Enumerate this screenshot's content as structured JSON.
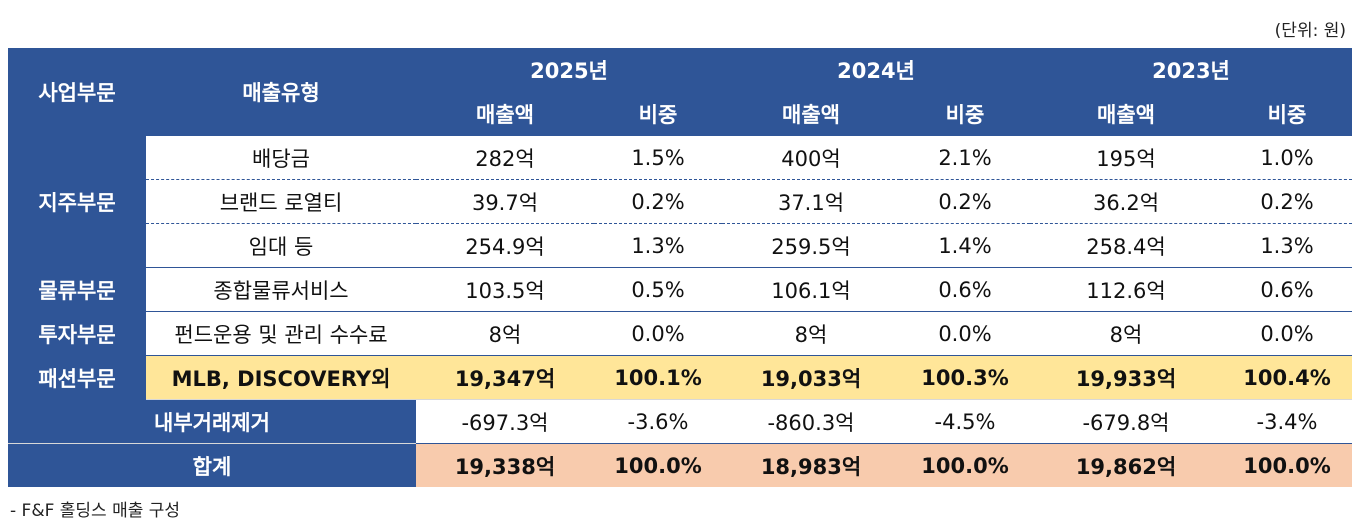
{
  "unit_note": "(단위: 원)",
  "caption": "- F&F 홀딩스 매출 구성",
  "header": {
    "segment": "사업부문",
    "type": "매출유형",
    "years": [
      "2025년",
      "2024년",
      "2023년"
    ],
    "sales": "매출액",
    "share": "비중"
  },
  "segments": {
    "holding": "지주부문",
    "logistics": "물류부문",
    "investment": "투자부문",
    "fashion": "패션부문"
  },
  "rows": [
    {
      "type": "배당금",
      "v": [
        "282억",
        "1.5%",
        "400억",
        "2.1%",
        "195억",
        "1.0%"
      ]
    },
    {
      "type": "브랜드 로열티",
      "v": [
        "39.7억",
        "0.2%",
        "37.1억",
        "0.2%",
        "36.2억",
        "0.2%"
      ]
    },
    {
      "type": "임대 등",
      "v": [
        "254.9억",
        "1.3%",
        "259.5억",
        "1.4%",
        "258.4억",
        "1.3%"
      ]
    },
    {
      "type": "종합물류서비스",
      "v": [
        "103.5억",
        "0.5%",
        "106.1억",
        "0.6%",
        "112.6억",
        "0.6%"
      ]
    },
    {
      "type": "펀드운용 및 관리 수수료",
      "v": [
        "8억",
        "0.0%",
        "8억",
        "0.0%",
        "8억",
        "0.0%"
      ]
    },
    {
      "type": "MLB, DISCOVERY외",
      "v": [
        "19,347억",
        "100.1%",
        "19,033억",
        "100.3%",
        "19,933억",
        "100.4%"
      ]
    }
  ],
  "elimination": {
    "label": "내부거래제거",
    "v": [
      "-697.3억",
      "-3.6%",
      "-860.3억",
      "-4.5%",
      "-679.8억",
      "-3.4%"
    ]
  },
  "total": {
    "label": "합계",
    "v": [
      "19,338억",
      "100.0%",
      "18,983억",
      "100.0%",
      "19,862억",
      "100.0%"
    ]
  }
}
